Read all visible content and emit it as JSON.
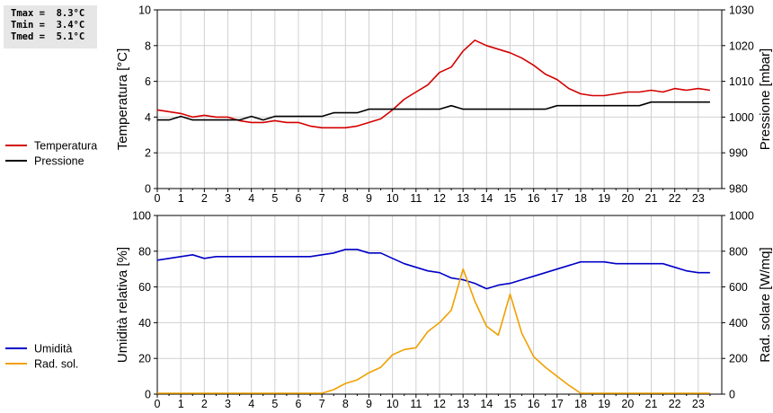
{
  "stats": [
    {
      "label": "Tmax =  ",
      "value": "8.3°C"
    },
    {
      "label": "Tmin =  ",
      "value": "3.4°C"
    },
    {
      "label": "Tmed =  ",
      "value": "5.1°C"
    }
  ],
  "chart_data": [
    {
      "type": "line",
      "ylabel": "Temperatura [°C]",
      "y2label": "Pressione [mbar]",
      "ylim": [
        0,
        10
      ],
      "y2lim": [
        980,
        1030
      ],
      "xlim": [
        0,
        24
      ],
      "grid": true,
      "legend_placement": "left",
      "x_ticks": [
        "0",
        "1",
        "2",
        "3",
        "4",
        "5",
        "6",
        "7",
        "8",
        "9",
        "10",
        "11",
        "12",
        "13",
        "14",
        "15",
        "16",
        "17",
        "18",
        "19",
        "20",
        "21",
        "22",
        "23"
      ],
      "y_ticks": [
        "0",
        "2",
        "4",
        "6",
        "8",
        "10"
      ],
      "y2_ticks": [
        "980",
        "990",
        "1000",
        "1010",
        "1020",
        "1030"
      ],
      "series": [
        {
          "name": "Temperatura",
          "axis": "left",
          "color": "#d40000",
          "x": [
            0,
            0.5,
            1,
            1.5,
            2,
            2.5,
            3,
            3.5,
            4,
            4.5,
            5,
            5.5,
            6,
            6.5,
            7,
            7.5,
            8,
            8.5,
            9,
            9.5,
            10,
            10.5,
            11,
            11.5,
            12,
            12.5,
            13,
            13.5,
            14,
            14.5,
            15,
            15.5,
            16,
            16.5,
            17,
            17.5,
            18,
            18.5,
            19,
            19.5,
            20,
            20.5,
            21,
            21.5,
            22,
            22.5,
            23,
            23.5
          ],
          "values": [
            4.4,
            4.3,
            4.2,
            4.0,
            4.1,
            4.0,
            4.0,
            3.8,
            3.7,
            3.7,
            3.8,
            3.7,
            3.7,
            3.5,
            3.4,
            3.4,
            3.4,
            3.5,
            3.7,
            3.9,
            4.4,
            5.0,
            5.4,
            5.8,
            6.5,
            6.8,
            7.7,
            8.3,
            8.0,
            7.8,
            7.6,
            7.3,
            6.9,
            6.4,
            6.1,
            5.6,
            5.3,
            5.2,
            5.2,
            5.3,
            5.4,
            5.4,
            5.5,
            5.4,
            5.6,
            5.5,
            5.6,
            5.5
          ]
        },
        {
          "name": "Pressione",
          "axis": "right",
          "color": "#000000",
          "x": [
            0,
            0.5,
            1,
            1.5,
            2,
            2.5,
            3,
            3.5,
            4,
            4.5,
            5,
            5.5,
            6,
            6.5,
            7,
            7.5,
            8,
            8.5,
            9,
            9.5,
            10,
            10.5,
            11,
            11.5,
            12,
            12.5,
            13,
            13.5,
            14,
            14.5,
            15,
            15.5,
            16,
            16.5,
            17,
            17.5,
            18,
            18.5,
            19,
            19.5,
            20,
            20.5,
            21,
            21.5,
            22,
            22.5,
            23,
            23.5
          ],
          "values": [
            999.2,
            999.2,
            1000.2,
            999.2,
            999.2,
            999.2,
            999.2,
            999.2,
            1000.2,
            999.2,
            1000.2,
            1000.2,
            1000.2,
            1000.2,
            1000.2,
            1001.2,
            1001.2,
            1001.2,
            1002.2,
            1002.2,
            1002.2,
            1002.2,
            1002.2,
            1002.2,
            1002.2,
            1003.2,
            1002.2,
            1002.2,
            1002.2,
            1002.2,
            1002.2,
            1002.2,
            1002.2,
            1002.2,
            1003.2,
            1003.2,
            1003.2,
            1003.2,
            1003.2,
            1003.2,
            1003.2,
            1003.2,
            1004.2,
            1004.2,
            1004.2,
            1004.2,
            1004.2,
            1004.2
          ]
        }
      ]
    },
    {
      "type": "line",
      "ylabel": "Umidità relativa [%]",
      "y2label": "Rad. solare [W/mq]",
      "ylim": [
        0,
        100
      ],
      "y2lim": [
        0,
        1000
      ],
      "xlim": [
        0,
        24
      ],
      "grid": true,
      "legend_placement": "left",
      "x_ticks": [
        "0",
        "1",
        "2",
        "3",
        "4",
        "5",
        "6",
        "7",
        "8",
        "9",
        "10",
        "11",
        "12",
        "13",
        "14",
        "15",
        "16",
        "17",
        "18",
        "19",
        "20",
        "21",
        "22",
        "23"
      ],
      "y_ticks": [
        "0",
        "20",
        "40",
        "60",
        "80",
        "100"
      ],
      "y2_ticks": [
        "0",
        "200",
        "400",
        "600",
        "800",
        "1000"
      ],
      "series": [
        {
          "name": "Umidità",
          "axis": "left",
          "color": "#0000c8",
          "x": [
            0,
            0.5,
            1,
            1.5,
            2,
            2.5,
            3,
            3.5,
            4,
            4.5,
            5,
            5.5,
            6,
            6.5,
            7,
            7.5,
            8,
            8.5,
            9,
            9.5,
            10,
            10.5,
            11,
            11.5,
            12,
            12.5,
            13,
            13.5,
            14,
            14.5,
            15,
            15.5,
            16,
            16.5,
            17,
            17.5,
            18,
            18.5,
            19,
            19.5,
            20,
            20.5,
            21,
            21.5,
            22,
            22.5,
            23,
            23.5
          ],
          "values": [
            75,
            76,
            77,
            78,
            76,
            77,
            77,
            77,
            77,
            77,
            77,
            77,
            77,
            77,
            78,
            79,
            81,
            81,
            79,
            79,
            76,
            73,
            71,
            69,
            68,
            65,
            64,
            62,
            59,
            61,
            62,
            64,
            66,
            68,
            70,
            72,
            74,
            74,
            74,
            73,
            73,
            73,
            73,
            73,
            71,
            69,
            68,
            68
          ]
        },
        {
          "name": "Rad. sol.",
          "axis": "right",
          "color": "#f0a000",
          "x": [
            0,
            0.5,
            1,
            1.5,
            2,
            2.5,
            3,
            3.5,
            4,
            4.5,
            5,
            5.5,
            6,
            6.5,
            7,
            7.5,
            8,
            8.5,
            9,
            9.5,
            10,
            10.5,
            11,
            11.5,
            12,
            12.5,
            13,
            13.5,
            14,
            14.5,
            15,
            15.5,
            16,
            16.5,
            17,
            17.5,
            18,
            18.5,
            19,
            19.5,
            20,
            20.5,
            21,
            21.5,
            22,
            22.5,
            23,
            23.5
          ],
          "values": [
            5,
            5,
            5,
            5,
            5,
            5,
            5,
            5,
            5,
            5,
            5,
            5,
            5,
            5,
            5,
            25,
            60,
            80,
            120,
            150,
            220,
            250,
            260,
            350,
            400,
            470,
            700,
            520,
            380,
            330,
            560,
            340,
            210,
            150,
            100,
            50,
            5,
            5,
            5,
            5,
            5,
            5,
            5,
            5,
            5,
            5,
            5,
            5
          ]
        }
      ]
    }
  ]
}
